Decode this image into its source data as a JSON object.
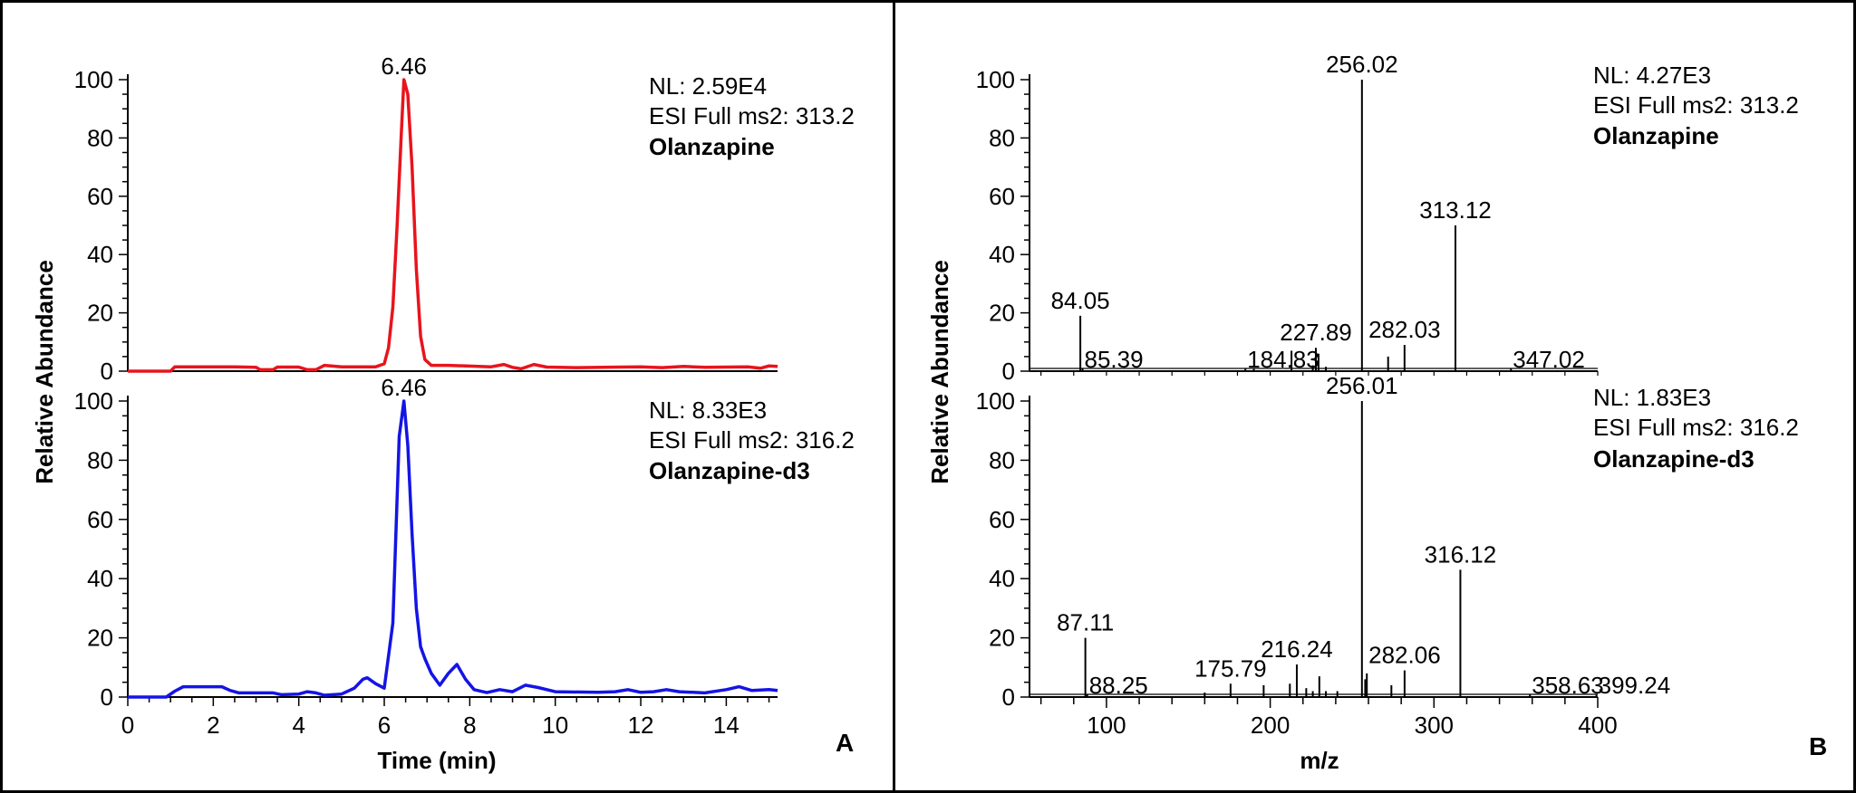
{
  "figure": {
    "panels": [
      {
        "letter": "A"
      },
      {
        "letter": "B"
      }
    ]
  },
  "chart_data": [
    {
      "id": "chrom_top",
      "type": "line",
      "panel": "A",
      "color": "#e8141c",
      "ylabel": "Relative Abundance",
      "xlabel": "",
      "xlim": [
        0,
        15.2
      ],
      "ylim": [
        0,
        100
      ],
      "yticks": [
        0,
        20,
        40,
        60,
        80,
        100
      ],
      "xticks": [],
      "info": [
        "NL: 2.59E4",
        "ESI Full ms2: 313.2",
        "Olanzapine"
      ],
      "peak_labels": [
        {
          "x": 6.46,
          "y": 100,
          "label": "6.46"
        }
      ],
      "series": [
        {
          "x": [
            0,
            1.0,
            1.1,
            2.5,
            3.0,
            3.1,
            3.4,
            3.5,
            4.0,
            4.2,
            4.4,
            4.6,
            5.0,
            5.8,
            6.0,
            6.1,
            6.2,
            6.3,
            6.4,
            6.46,
            6.55,
            6.65,
            6.75,
            6.85,
            6.95,
            7.1,
            7.5,
            8.5,
            8.8,
            9.0,
            9.2,
            9.5,
            9.8,
            10.5,
            11.5,
            12.0,
            12.5,
            13.0,
            13.5,
            14.0,
            14.5,
            14.8,
            15.0,
            15.2
          ],
          "y": [
            0,
            0,
            1.5,
            1.5,
            1.3,
            0.5,
            0.5,
            1.4,
            1.4,
            0.5,
            0.5,
            2,
            1.5,
            1.5,
            2.5,
            8,
            22,
            50,
            82,
            100,
            95,
            70,
            35,
            12,
            4,
            2,
            2,
            1.5,
            2.3,
            1.3,
            0.8,
            2.3,
            1.4,
            1.2,
            1.4,
            1.5,
            1.2,
            1.6,
            1.3,
            1.4,
            1.5,
            1.0,
            1.8,
            1.6
          ]
        }
      ]
    },
    {
      "id": "chrom_bottom",
      "type": "line",
      "panel": "A",
      "color": "#1414e6",
      "ylabel": "Relative Abundance",
      "xlabel": "Time (min)",
      "xlim": [
        0,
        15.2
      ],
      "ylim": [
        0,
        100
      ],
      "yticks": [
        0,
        20,
        40,
        60,
        80,
        100
      ],
      "xticks": [
        0,
        2,
        4,
        6,
        8,
        10,
        12,
        14
      ],
      "info": [
        "NL: 8.33E3",
        "ESI Full ms2: 316.2",
        "Olanzapine-d3"
      ],
      "peak_labels": [
        {
          "x": 6.46,
          "y": 100,
          "label": "6.46"
        }
      ],
      "series": [
        {
          "x": [
            0,
            0.9,
            1.1,
            1.3,
            2.2,
            2.4,
            2.6,
            3.4,
            3.6,
            4.0,
            4.2,
            4.4,
            4.6,
            5.0,
            5.3,
            5.5,
            5.6,
            5.8,
            6.0,
            6.2,
            6.35,
            6.46,
            6.55,
            6.65,
            6.75,
            6.85,
            6.95,
            7.1,
            7.3,
            7.5,
            7.7,
            7.9,
            8.1,
            8.4,
            8.7,
            9.0,
            9.3,
            9.6,
            10.0,
            11.0,
            11.4,
            11.7,
            12.0,
            12.3,
            12.6,
            12.9,
            13.5,
            14.0,
            14.3,
            14.6,
            15.0,
            15.2
          ],
          "y": [
            0,
            0,
            2,
            3.5,
            3.5,
            2.2,
            1.4,
            1.4,
            0.8,
            1.0,
            1.8,
            1.4,
            0.6,
            1.0,
            3,
            6,
            6.5,
            4.5,
            3,
            25,
            88,
            100,
            85,
            55,
            30,
            17,
            13,
            8,
            4,
            8,
            11,
            6,
            2.5,
            1.5,
            2.5,
            1.8,
            4,
            3.2,
            1.8,
            1.6,
            1.8,
            2.5,
            1.6,
            1.8,
            2.5,
            1.8,
            1.4,
            2.5,
            3.5,
            2.2,
            2.5,
            2.2
          ]
        }
      ]
    },
    {
      "id": "ms_top",
      "type": "bar",
      "panel": "B",
      "color": "#000000",
      "ylabel": "Relative Abundance",
      "xlabel": "",
      "xlim": [
        53,
        400
      ],
      "ylim": [
        0,
        100
      ],
      "yticks": [
        0,
        20,
        40,
        60,
        80,
        100
      ],
      "xticks": [],
      "info": [
        "NL: 4.27E3",
        "ESI Full ms2: 313.2",
        "Olanzapine"
      ],
      "peaks": [
        {
          "mz": 84.05,
          "y": 19,
          "label": "84.05"
        },
        {
          "mz": 85.39,
          "y": 0.8,
          "label": "85.39"
        },
        {
          "mz": 184.83,
          "y": 0.8,
          "label": "184.83"
        },
        {
          "mz": 190.0,
          "y": 1.0
        },
        {
          "mz": 213.0,
          "y": 7
        },
        {
          "mz": 226.0,
          "y": 2
        },
        {
          "mz": 227.89,
          "y": 8,
          "label": "227.89"
        },
        {
          "mz": 229.5,
          "y": 6
        },
        {
          "mz": 234.0,
          "y": 1.5
        },
        {
          "mz": 256.02,
          "y": 100,
          "label": "256.02"
        },
        {
          "mz": 272.0,
          "y": 5
        },
        {
          "mz": 282.03,
          "y": 9,
          "label": "282.03"
        },
        {
          "mz": 313.12,
          "y": 50,
          "label": "313.12"
        },
        {
          "mz": 347.02,
          "y": 0.8,
          "label": "347.02"
        }
      ]
    },
    {
      "id": "ms_bottom",
      "type": "bar",
      "panel": "B",
      "color": "#000000",
      "ylabel": "Relative Abundance",
      "xlabel": "m/z",
      "xlim": [
        53,
        400
      ],
      "ylim": [
        0,
        100
      ],
      "yticks": [
        0,
        20,
        40,
        60,
        80,
        100
      ],
      "xticks": [
        100,
        200,
        300,
        400
      ],
      "info": [
        "NL: 1.83E3",
        "ESI Full ms2: 316.2",
        "Olanzapine-d3"
      ],
      "peaks": [
        {
          "mz": 87.11,
          "y": 20,
          "label": "87.11"
        },
        {
          "mz": 88.25,
          "y": 0.8,
          "label": "88.25"
        },
        {
          "mz": 160.0,
          "y": 1.5
        },
        {
          "mz": 175.79,
          "y": 4.5,
          "label": "175.79"
        },
        {
          "mz": 196.0,
          "y": 4
        },
        {
          "mz": 212.0,
          "y": 4.5
        },
        {
          "mz": 216.24,
          "y": 11,
          "label": "216.24"
        },
        {
          "mz": 222.0,
          "y": 3
        },
        {
          "mz": 226.0,
          "y": 2
        },
        {
          "mz": 230.0,
          "y": 7
        },
        {
          "mz": 234.0,
          "y": 2
        },
        {
          "mz": 241.0,
          "y": 2
        },
        {
          "mz": 256.01,
          "y": 100,
          "label": "256.01"
        },
        {
          "mz": 258.0,
          "y": 6
        },
        {
          "mz": 259.0,
          "y": 8
        },
        {
          "mz": 274.0,
          "y": 4
        },
        {
          "mz": 282.06,
          "y": 9,
          "label": "282.06"
        },
        {
          "mz": 316.12,
          "y": 43,
          "label": "316.12"
        },
        {
          "mz": 358.63,
          "y": 0.8,
          "label": "358.63"
        },
        {
          "mz": 399.24,
          "y": 0.8,
          "label": "399.24"
        }
      ]
    }
  ]
}
